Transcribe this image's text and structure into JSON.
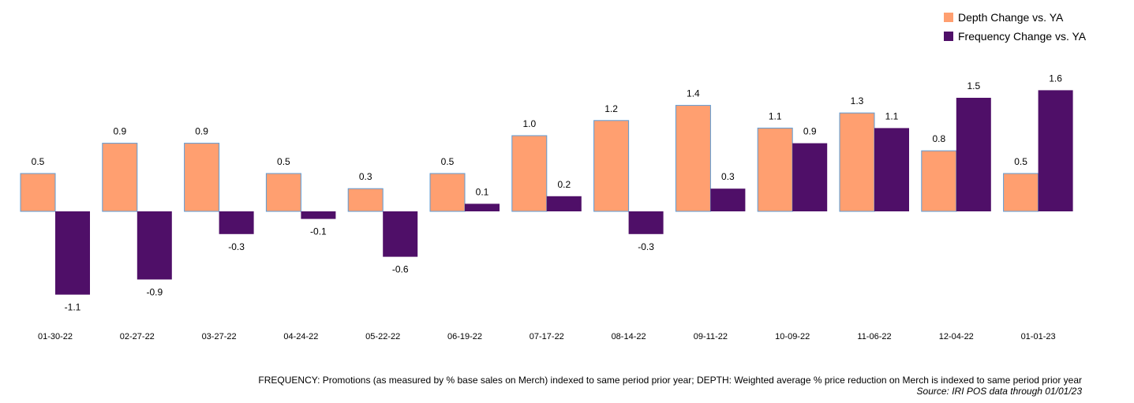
{
  "colors": {
    "depth_fill": "#FF9F70",
    "depth_stroke": "#5B9BD5",
    "frequency_fill": "#4F0F68"
  },
  "legend": {
    "depth_label": "Depth Change vs. YA",
    "frequency_label": "Frequency Change vs. YA"
  },
  "footnote": {
    "definition": "FREQUENCY: Promotions (as measured by % base sales on Merch) indexed to same period prior year; DEPTH: Weighted average % price reduction on Merch is indexed to same period prior year",
    "source": "Source: IRI POS data through 01/01/23"
  },
  "chart_data": {
    "type": "bar",
    "categories": [
      "01-30-22",
      "02-27-22",
      "03-27-22",
      "04-24-22",
      "05-22-22",
      "06-19-22",
      "07-17-22",
      "08-14-22",
      "09-11-22",
      "10-09-22",
      "11-06-22",
      "12-04-22",
      "01-01-23"
    ],
    "series": [
      {
        "name": "Depth Change vs. YA",
        "values": [
          0.5,
          0.9,
          0.9,
          0.5,
          0.3,
          0.5,
          1.0,
          1.2,
          1.4,
          1.1,
          1.3,
          0.8,
          0.5
        ],
        "labels": [
          "0.5",
          "0.9",
          "0.9",
          "0.5",
          "0.3",
          "0.5",
          "1.0",
          "1.2",
          "1.4",
          "1.1",
          "1.3",
          "0.8",
          "0.5"
        ]
      },
      {
        "name": "Frequency Change vs. YA",
        "values": [
          -1.1,
          -0.9,
          -0.3,
          -0.1,
          -0.6,
          0.1,
          0.2,
          -0.3,
          0.3,
          0.9,
          1.1,
          1.5,
          1.6
        ],
        "labels": [
          "-1.1",
          "-0.9",
          "-0.3",
          "-0.1",
          "-0.6",
          "0.1",
          "0.2",
          "-0.3",
          "0.3",
          "0.9",
          "1.1",
          "1.5",
          "1.6"
        ]
      }
    ],
    "grid": false,
    "legend_position": "top-right"
  }
}
